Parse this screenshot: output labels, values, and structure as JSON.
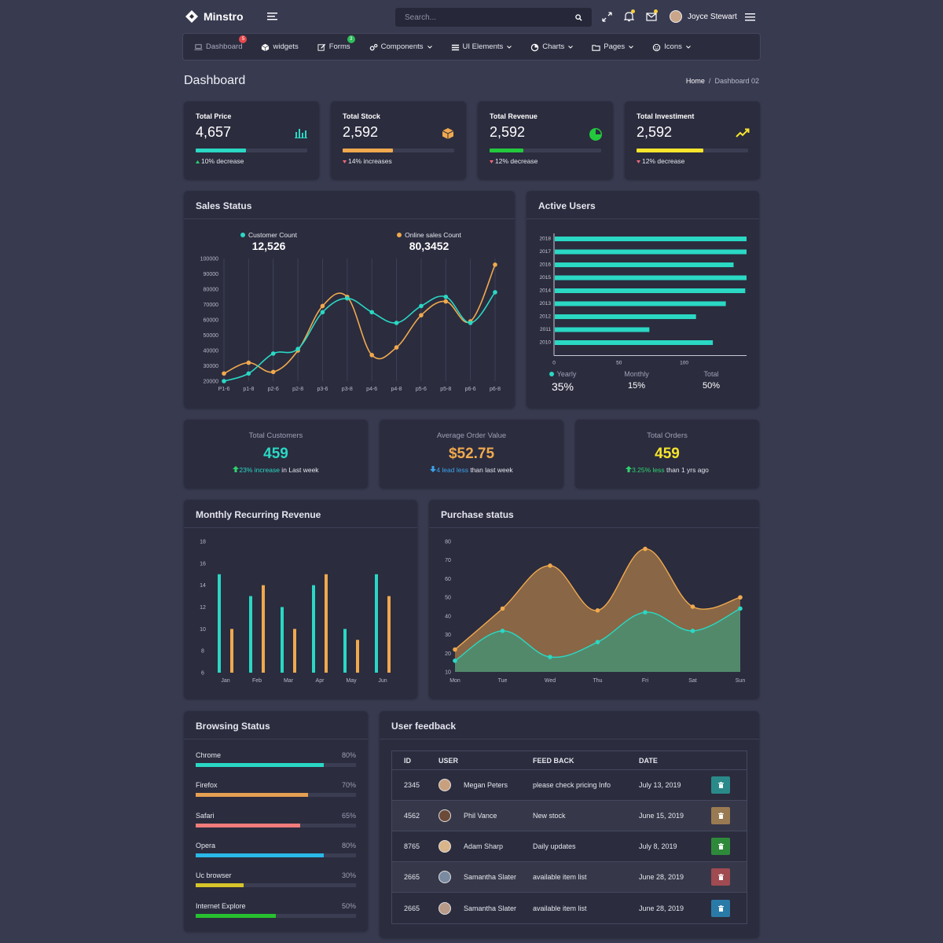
{
  "topbar": {
    "brand": "Minstro",
    "search_placeholder": "Search...",
    "user_name": "Joyce Stewart"
  },
  "nav": [
    {
      "label": "Dashboard",
      "icon": "laptop-icon",
      "badge": "5",
      "badge_color": "#e5484d",
      "muted": true
    },
    {
      "label": "widgets",
      "icon": "cube-icon"
    },
    {
      "label": "Forms",
      "icon": "edit-icon",
      "badge": "3",
      "badge_color": "#2dbd5a"
    },
    {
      "label": "Components",
      "icon": "cogs-icon",
      "dropdown": true
    },
    {
      "label": "UI Elements",
      "icon": "list-icon",
      "dropdown": true
    },
    {
      "label": "Charts",
      "icon": "pie-icon",
      "dropdown": true
    },
    {
      "label": "Pages",
      "icon": "folder-icon",
      "dropdown": true
    },
    {
      "label": "Icons",
      "icon": "smile-icon",
      "dropdown": true
    }
  ],
  "page": {
    "title": "Dashboard",
    "breadcrumb_home": "Home",
    "breadcrumb_sep": "/",
    "breadcrumb_current": "Dashboard 02"
  },
  "kpis": [
    {
      "label": "Total Price",
      "value": "4,657",
      "progress": 0.45,
      "color": "#2ad8c4",
      "trend": "up",
      "foot": "10% decrease",
      "icon": "bar-chart-icon"
    },
    {
      "label": "Total Stock",
      "value": "2,592",
      "progress": 0.45,
      "color": "#f0a94e",
      "trend": "down",
      "foot": "14% increases",
      "icon": "cube-icon"
    },
    {
      "label": "Total Revenue",
      "value": "2,592",
      "progress": 0.3,
      "color": "#23c93d",
      "trend": "down",
      "foot": "12% decrease",
      "icon": "pie-chart-icon"
    },
    {
      "label": "Total Investiment",
      "value": "2,592",
      "progress": 0.6,
      "color": "#f6e52c",
      "trend": "down",
      "foot": "12% decrease",
      "icon": "trend-up-icon"
    }
  ],
  "sales": {
    "title": "Sales Status",
    "customer_label": "Customer Count",
    "customer_value": "12,526",
    "online_label": "Online sales Count",
    "online_value": "80,3452"
  },
  "active_users": {
    "title": "Active Users",
    "stats": [
      {
        "label": "Yearly",
        "value": "35%",
        "dot": true
      },
      {
        "label": "Monthly",
        "value": "15%"
      },
      {
        "label": "Total",
        "value": "50%"
      }
    ]
  },
  "stats": [
    {
      "label": "Total Customers",
      "value": "459",
      "value_color": "#2ad8c4",
      "arrow": "up",
      "accent": "23% increase",
      "accent_color": "#2ad8c4",
      "rest": " in Last week"
    },
    {
      "label": "Average Order Value",
      "value": "$52.75",
      "value_color": "#f0a94e",
      "arrow": "down",
      "accent": "4 lead less",
      "accent_color": "#3aa3ea",
      "rest": " than last week"
    },
    {
      "label": "Total Orders",
      "value": "459",
      "value_color": "#f6e52c",
      "arrow": "up",
      "accent": "3.25% less",
      "accent_color": "#2dd36f",
      "rest": " than 1 yrs ago"
    }
  ],
  "mrr": {
    "title": "Monthly Recurring Revenue"
  },
  "purchase": {
    "title": "Purchase status"
  },
  "browsing": {
    "title": "Browsing Status",
    "items": [
      {
        "name": "Chrome",
        "pct": "80%",
        "value": 0.8,
        "color": "#2ad8c4"
      },
      {
        "name": "Firefox",
        "pct": "70%",
        "value": 0.7,
        "color": "#e6a052"
      },
      {
        "name": "Safari",
        "pct": "65%",
        "value": 0.65,
        "color": "#f07b7b"
      },
      {
        "name": "Opera",
        "pct": "80%",
        "value": 0.8,
        "color": "#2ab8e8"
      },
      {
        "name": "Uc browser",
        "pct": "30%",
        "value": 0.3,
        "color": "#d6c52a"
      },
      {
        "name": "Internet Explore",
        "pct": "50%",
        "value": 0.5,
        "color": "#27c12f"
      }
    ]
  },
  "feedback": {
    "title": "User feedback",
    "headers": [
      "ID",
      "USER",
      "FEED BACK",
      "DATE"
    ],
    "rows": [
      {
        "id": "2345",
        "user": "Megan Peters",
        "feedback": "please check pricing Info",
        "date": "July 13, 2019",
        "btn_color": "#2a8a8a",
        "avatar_color": "#c9a07e"
      },
      {
        "id": "4562",
        "user": "Phil Vance",
        "feedback": "New stock",
        "date": "June 15, 2019",
        "btn_color": "#9a7a52",
        "avatar_color": "#6b4a3a"
      },
      {
        "id": "8765",
        "user": "Adam Sharp",
        "feedback": "Daily updates",
        "date": "July 8, 2019",
        "btn_color": "#2e8a3a",
        "avatar_color": "#d9b58a"
      },
      {
        "id": "2665",
        "user": "Samantha Slater",
        "feedback": "available item list",
        "date": "June 28, 2019",
        "btn_color": "#a04a52",
        "avatar_color": "#7a8aa0"
      },
      {
        "id": "2665",
        "user": "Samantha Slater",
        "feedback": "available item list",
        "date": "June 28, 2019",
        "btn_color": "#2a7aa8",
        "avatar_color": "#b89a88"
      }
    ]
  },
  "chart_data": [
    {
      "type": "line",
      "title": "Sales Status",
      "categories": [
        "P1-6",
        "p1-8",
        "p2-6",
        "p2-8",
        "p3-6",
        "p3-8",
        "p4-6",
        "p4-8",
        "p5-6",
        "p5-8",
        "p6-6",
        "p6-8"
      ],
      "ylim": [
        20000,
        100000
      ],
      "yticks": [
        "100000",
        "90000",
        "80000",
        "70000",
        "60000",
        "50000",
        "40000",
        "30000",
        "20000"
      ],
      "series": [
        {
          "name": "Customer Count",
          "color": "#2ad8c4",
          "values": [
            20000,
            25000,
            38000,
            41000,
            65000,
            74000,
            65000,
            58000,
            69000,
            75000,
            58000,
            78000
          ]
        },
        {
          "name": "Online sales Count",
          "color": "#f0a94e",
          "values": [
            25000,
            32000,
            26000,
            40000,
            69000,
            75000,
            37000,
            42000,
            63000,
            72000,
            59000,
            96000
          ]
        }
      ]
    },
    {
      "type": "bar",
      "orientation": "horizontal",
      "title": "Active Users",
      "categories": [
        "2018",
        "2017",
        "2016",
        "2015",
        "2014",
        "2013",
        "2012",
        "2011",
        "2010"
      ],
      "values": [
        148,
        148,
        138,
        148,
        147,
        132,
        109,
        73,
        122
      ],
      "xlim": [
        0,
        148
      ],
      "xticks": [
        "0",
        "50",
        "100"
      ],
      "color": "#2ad8c4"
    },
    {
      "type": "bar",
      "title": "Monthly Recurring Revenue",
      "categories": [
        "Jan",
        "Feb",
        "Mar",
        "Apr",
        "May",
        "Jun"
      ],
      "ylim": [
        6,
        18
      ],
      "yticks": [
        "18",
        "16",
        "14",
        "12",
        "10",
        "8",
        "6"
      ],
      "series": [
        {
          "color": "#2ad8c4",
          "values": [
            15,
            13,
            12,
            14,
            10,
            15
          ]
        },
        {
          "color": "#f0a94e",
          "values": [
            10,
            14,
            10,
            15,
            9,
            13
          ]
        }
      ]
    },
    {
      "type": "area",
      "title": "Purchase status",
      "categories": [
        "Mon",
        "Tue",
        "Wed",
        "Thu",
        "Fri",
        "Sat",
        "Sun"
      ],
      "ylim": [
        10,
        80
      ],
      "yticks": [
        "80",
        "70",
        "60",
        "50",
        "40",
        "30",
        "20",
        "10"
      ],
      "series": [
        {
          "color": "#f0a94e",
          "values": [
            22,
            44,
            67,
            43,
            76,
            45,
            50
          ]
        },
        {
          "color": "#2ad8c4",
          "values": [
            16,
            32,
            18,
            26,
            42,
            32,
            44
          ]
        }
      ]
    }
  ]
}
